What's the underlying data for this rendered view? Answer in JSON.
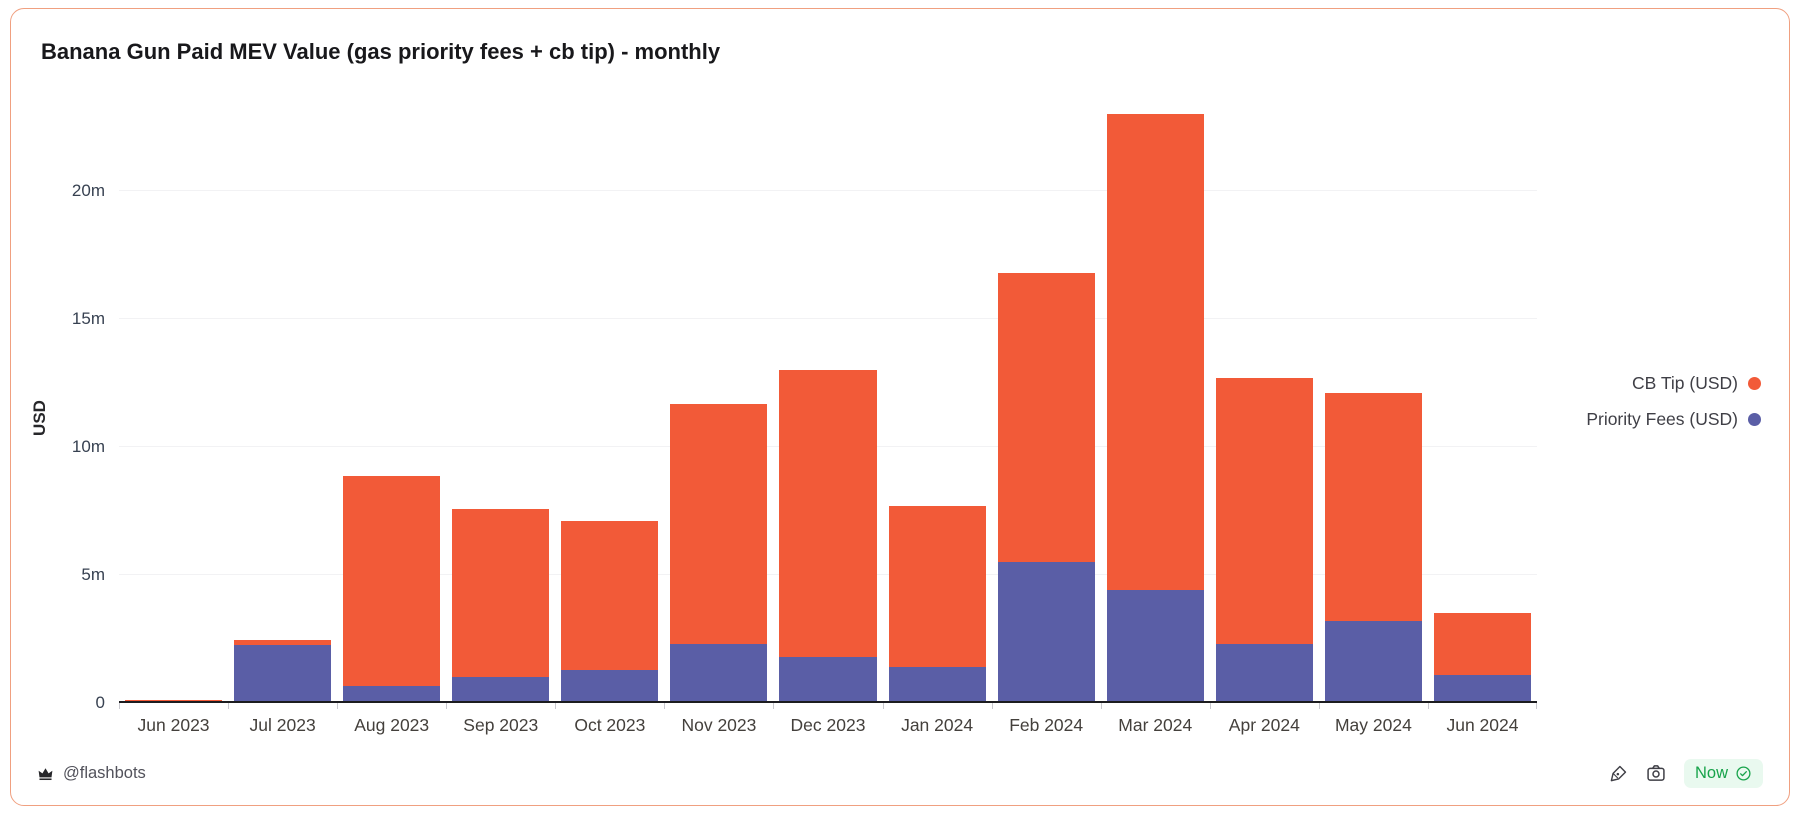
{
  "card": {
    "title": "Banana Gun Paid MEV Value (gas priority fees + cb tip) - monthly"
  },
  "chart_data": {
    "type": "bar",
    "stacked": true,
    "title": "Banana Gun Paid MEV Value (gas priority fees + cb tip) - monthly",
    "xlabel": "",
    "ylabel": "USD",
    "value_unit": "millions USD",
    "categories": [
      "Jun 2023",
      "Jul 2023",
      "Aug 2023",
      "Sep 2023",
      "Oct 2023",
      "Nov 2023",
      "Dec 2023",
      "Jan 2024",
      "Feb 2024",
      "Mar 2024",
      "Apr 2024",
      "May 2024",
      "Jun 2024"
    ],
    "series": [
      {
        "name": "Priority Fees (USD)",
        "color": "#5a5ea6",
        "values": [
          0.07,
          2.25,
          0.67,
          1.0,
          1.3,
          2.3,
          1.8,
          1.4,
          5.5,
          4.4,
          2.3,
          3.2,
          1.1
        ]
      },
      {
        "name": "CB Tip (USD)",
        "color": "#f25a38",
        "values": [
          0.03,
          0.2,
          8.2,
          6.6,
          5.8,
          9.4,
          11.2,
          6.3,
          11.3,
          18.6,
          10.4,
          8.9,
          2.4
        ]
      }
    ],
    "totals": [
      0.1,
      2.45,
      8.87,
      7.6,
      7.1,
      11.7,
      13.0,
      7.7,
      16.8,
      23.0,
      12.7,
      12.1,
      3.5
    ],
    "ymax": 23.6,
    "yticks": [
      0,
      5,
      10,
      15,
      20
    ],
    "ytick_labels": [
      "0",
      "5m",
      "10m",
      "15m",
      "20m"
    ],
    "grid": true,
    "legend_position": "right",
    "legend": [
      {
        "label": "CB Tip (USD)",
        "color": "#f25a38"
      },
      {
        "label": "Priority Fees (USD)",
        "color": "#5a5ea6"
      }
    ]
  },
  "footer": {
    "attribution": "@flashbots",
    "refresh_status": "Now"
  },
  "colors": {
    "cb_tip": "#f25a38",
    "priority_fees": "#5a5ea6",
    "card_border": "#f0a080",
    "now_green": "#17a34a",
    "now_bg": "#e9f9ef"
  }
}
